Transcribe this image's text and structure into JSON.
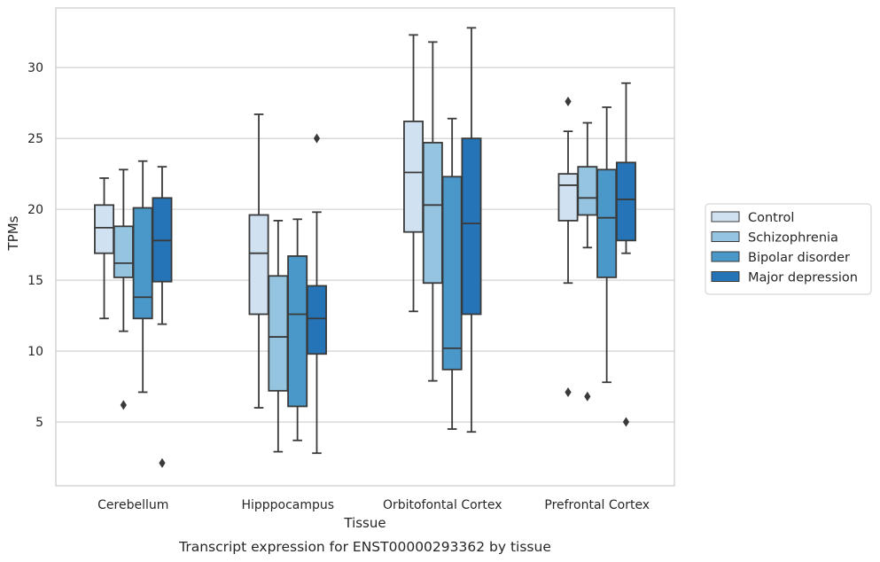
{
  "chart_data": {
    "type": "box",
    "xlabel": "Tissue",
    "ylabel": "TPMs",
    "caption": "Transcript expression for ENST00000293362 by tissue",
    "ylim": [
      0.5,
      34.2
    ],
    "y_ticks": [
      5,
      10,
      15,
      20,
      25,
      30
    ],
    "grid": "horizontal",
    "legend_position": "outside-right",
    "categories": [
      "Cerebellum",
      "Hipppocampus",
      "Orbitofontal Cortex",
      "Prefrontal Cortex"
    ],
    "series": [
      {
        "name": "Control",
        "color": "#d0e2f2",
        "boxes": [
          {
            "whisker_low": 12.3,
            "q1": 16.9,
            "median": 18.7,
            "q3": 20.3,
            "whisker_high": 22.2,
            "outliers": []
          },
          {
            "whisker_low": 6.0,
            "q1": 12.6,
            "median": 16.9,
            "q3": 19.6,
            "whisker_high": 26.7,
            "outliers": []
          },
          {
            "whisker_low": 12.8,
            "q1": 18.4,
            "median": 22.6,
            "q3": 26.2,
            "whisker_high": 32.3,
            "outliers": []
          },
          {
            "whisker_low": 14.8,
            "q1": 19.2,
            "median": 21.7,
            "q3": 22.5,
            "whisker_high": 25.5,
            "outliers": [
              27.6,
              7.1
            ]
          }
        ]
      },
      {
        "name": "Schizophrenia",
        "color": "#94c4df",
        "boxes": [
          {
            "whisker_low": 11.4,
            "q1": 15.2,
            "median": 16.2,
            "q3": 18.8,
            "whisker_high": 22.8,
            "outliers": [
              6.2
            ]
          },
          {
            "whisker_low": 2.9,
            "q1": 7.2,
            "median": 11.0,
            "q3": 15.3,
            "whisker_high": 19.2,
            "outliers": []
          },
          {
            "whisker_low": 7.9,
            "q1": 14.8,
            "median": 20.3,
            "q3": 24.7,
            "whisker_high": 31.8,
            "outliers": []
          },
          {
            "whisker_low": 17.3,
            "q1": 19.6,
            "median": 20.8,
            "q3": 23.0,
            "whisker_high": 26.1,
            "outliers": [
              6.8
            ]
          }
        ]
      },
      {
        "name": "Bipolar disorder",
        "color": "#4a98c9",
        "boxes": [
          {
            "whisker_low": 7.1,
            "q1": 12.3,
            "median": 13.8,
            "q3": 20.1,
            "whisker_high": 23.4,
            "outliers": []
          },
          {
            "whisker_low": 3.7,
            "q1": 6.1,
            "median": 12.6,
            "q3": 16.7,
            "whisker_high": 19.3,
            "outliers": []
          },
          {
            "whisker_low": 4.5,
            "q1": 8.7,
            "median": 10.2,
            "q3": 22.3,
            "whisker_high": 26.4,
            "outliers": []
          },
          {
            "whisker_low": 7.8,
            "q1": 15.2,
            "median": 19.4,
            "q3": 22.8,
            "whisker_high": 27.2,
            "outliers": []
          }
        ]
      },
      {
        "name": "Major depression",
        "color": "#2474b7",
        "boxes": [
          {
            "whisker_low": 11.9,
            "q1": 14.9,
            "median": 17.8,
            "q3": 20.8,
            "whisker_high": 23.0,
            "outliers": [
              2.1
            ]
          },
          {
            "whisker_low": 2.8,
            "q1": 9.8,
            "median": 12.3,
            "q3": 14.6,
            "whisker_high": 19.8,
            "outliers": [
              25.0
            ]
          },
          {
            "whisker_low": 4.3,
            "q1": 12.6,
            "median": 19.0,
            "q3": 25.0,
            "whisker_high": 32.8,
            "outliers": []
          },
          {
            "whisker_low": 16.9,
            "q1": 17.8,
            "median": 20.7,
            "q3": 23.3,
            "whisker_high": 28.9,
            "outliers": [
              5.0
            ]
          }
        ]
      }
    ]
  }
}
